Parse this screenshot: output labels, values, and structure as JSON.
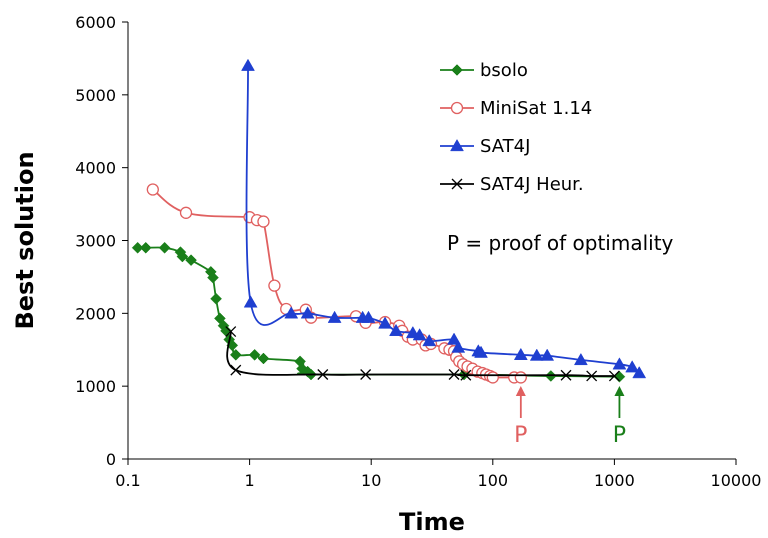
{
  "chart_data": {
    "type": "line",
    "title": "",
    "xlabel": "Time",
    "ylabel": "Best solution",
    "x_scale": "log",
    "xlim": [
      0.1,
      10000
    ],
    "ylim": [
      0,
      6000
    ],
    "x_ticks": [
      0.1,
      1,
      10,
      100,
      1000,
      10000
    ],
    "x_tick_labels": [
      "0.1",
      "1",
      "10",
      "100",
      "1000",
      "10000"
    ],
    "y_ticks": [
      0,
      1000,
      2000,
      3000,
      4000,
      5000,
      6000
    ],
    "y_tick_labels": [
      "0",
      "1000",
      "2000",
      "3000",
      "4000",
      "5000",
      "6000"
    ],
    "grid": false,
    "legend_position": "top-right",
    "series": [
      {
        "name": "bsolo",
        "color": "#1a7f1a",
        "marker": "diamond",
        "points": [
          [
            0.12,
            2900
          ],
          [
            0.14,
            2900
          ],
          [
            0.2,
            2900
          ],
          [
            0.27,
            2840
          ],
          [
            0.28,
            2780
          ],
          [
            0.33,
            2730
          ],
          [
            0.48,
            2570
          ],
          [
            0.5,
            2490
          ],
          [
            0.53,
            2200
          ],
          [
            0.57,
            1930
          ],
          [
            0.61,
            1830
          ],
          [
            0.64,
            1760
          ],
          [
            0.68,
            1640
          ],
          [
            0.72,
            1560
          ],
          [
            0.77,
            1430
          ],
          [
            1.1,
            1430
          ],
          [
            1.3,
            1380
          ],
          [
            2.6,
            1340
          ],
          [
            2.7,
            1240
          ],
          [
            3.0,
            1200
          ],
          [
            3.2,
            1160
          ],
          [
            58,
            1160
          ],
          [
            300,
            1140
          ],
          [
            1100,
            1130
          ]
        ]
      },
      {
        "name": "MiniSat 1.14",
        "color": "#e06060",
        "marker": "circle",
        "points": [
          [
            0.16,
            3700
          ],
          [
            0.3,
            3380
          ],
          [
            1.0,
            3320
          ],
          [
            1.15,
            3280
          ],
          [
            1.3,
            3260
          ],
          [
            1.6,
            2380
          ],
          [
            2.0,
            2060
          ],
          [
            2.9,
            2050
          ],
          [
            3.2,
            1940
          ],
          [
            7.5,
            1960
          ],
          [
            9.0,
            1870
          ],
          [
            13,
            1880
          ],
          [
            17,
            1830
          ],
          [
            18,
            1760
          ],
          [
            20,
            1680
          ],
          [
            22,
            1640
          ],
          [
            26,
            1640
          ],
          [
            28,
            1560
          ],
          [
            31,
            1580
          ],
          [
            40,
            1520
          ],
          [
            44,
            1500
          ],
          [
            48,
            1480
          ],
          [
            50,
            1400
          ],
          [
            53,
            1340
          ],
          [
            57,
            1300
          ],
          [
            62,
            1270
          ],
          [
            68,
            1240
          ],
          [
            75,
            1200
          ],
          [
            82,
            1180
          ],
          [
            88,
            1160
          ],
          [
            95,
            1140
          ],
          [
            100,
            1120
          ],
          [
            150,
            1120
          ],
          [
            170,
            1120
          ]
        ]
      },
      {
        "name": "SAT4J",
        "color": "#1f3fd0",
        "marker": "triangle",
        "points": [
          [
            0.97,
            5400
          ],
          [
            1.02,
            2150
          ],
          [
            2.2,
            2000
          ],
          [
            3.0,
            2000
          ],
          [
            5.0,
            1940
          ],
          [
            8.5,
            1940
          ],
          [
            9.5,
            1940
          ],
          [
            13,
            1860
          ],
          [
            16,
            1760
          ],
          [
            22,
            1730
          ],
          [
            25,
            1700
          ],
          [
            30,
            1620
          ],
          [
            48,
            1640
          ],
          [
            52,
            1530
          ],
          [
            76,
            1480
          ],
          [
            80,
            1460
          ],
          [
            170,
            1430
          ],
          [
            230,
            1420
          ],
          [
            280,
            1420
          ],
          [
            530,
            1360
          ],
          [
            1100,
            1300
          ],
          [
            1400,
            1260
          ],
          [
            1600,
            1180
          ]
        ]
      },
      {
        "name": "SAT4J Heur.",
        "color": "#000000",
        "marker": "x",
        "points": [
          [
            0.7,
            1750
          ],
          [
            0.77,
            1220
          ],
          [
            4.0,
            1160
          ],
          [
            9.0,
            1160
          ],
          [
            48,
            1160
          ],
          [
            60,
            1150
          ],
          [
            400,
            1150
          ],
          [
            650,
            1140
          ],
          [
            1000,
            1140
          ]
        ]
      }
    ],
    "annotations": [
      {
        "text": "P = proof of optimality"
      },
      {
        "text": "P",
        "x": 170,
        "y": 1120,
        "color": "#e06060"
      },
      {
        "text": "P",
        "x": 1100,
        "y": 1130,
        "color": "#1a7f1a"
      }
    ]
  }
}
